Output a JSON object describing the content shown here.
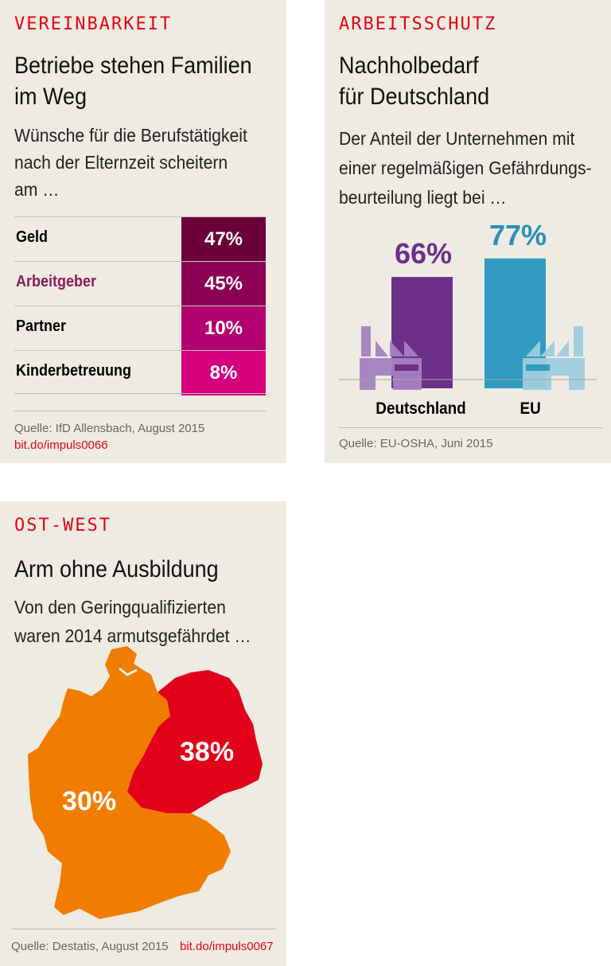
{
  "panel1": {
    "kicker": "VEREINBARKEIT",
    "title_lines": [
      "Betriebe stehen Familien",
      "im Weg"
    ],
    "sub_lines": [
      "Wünsche für die Berufstätigkeit",
      "nach der Elternzeit scheitern",
      "am …"
    ],
    "rows": [
      {
        "label": "Geld",
        "value": "47%",
        "color": "#6b0039"
      },
      {
        "label": "Arbeitgeber",
        "value": "45%",
        "color": "#8c0054",
        "label_color": "#8c1c5a"
      },
      {
        "label": "Partner",
        "value": "10%",
        "color": "#b30071"
      },
      {
        "label": "Kinderbetreuung",
        "value": "8%",
        "color": "#d6007f"
      }
    ],
    "source": "Quelle: IfD Allensbach, August 2015",
    "link": "bit.do/impuls0066"
  },
  "panel2": {
    "kicker": "ARBEITSSCHUTZ",
    "title_lines": [
      "Nachholbedarf",
      "für Deutschland"
    ],
    "sub_lines": [
      "Der Anteil der Unternehmen mit",
      "einer regelmäßigen Gefährdungs-",
      "beurteilung liegt bei …"
    ],
    "source": "Quelle: EU-OSHA, Juni 2015"
  },
  "panel3": {
    "kicker": "OST-WEST",
    "title": "Arm ohne Ausbildung",
    "sub_lines": [
      "Von den Geringqualifizierten",
      "waren 2014 armutsgefährdet …"
    ],
    "source": "Quelle: Destatis, August 2015",
    "link": "bit.do/impuls0067",
    "west": {
      "value": "30%",
      "color": "#f07d00"
    },
    "east": {
      "value": "38%",
      "color": "#e2001a"
    }
  },
  "chart_data": [
    {
      "type": "table",
      "title": "Betriebe stehen Familien im Weg",
      "categories": [
        "Geld",
        "Arbeitgeber",
        "Partner",
        "Kinderbetreuung"
      ],
      "values": [
        47,
        45,
        10,
        8
      ],
      "unit": "%"
    },
    {
      "type": "bar",
      "title": "Nachholbedarf für Deutschland",
      "categories": [
        "Deutschland",
        "EU"
      ],
      "values": [
        66,
        77
      ],
      "labels": [
        "66%",
        "77%"
      ],
      "colors": [
        "#6c2f8a",
        "#319bc2"
      ],
      "icon_colors": [
        "#a582c0",
        "#9fcde0"
      ]
    },
    {
      "type": "map",
      "title": "Arm ohne Ausbildung",
      "categories": [
        "West",
        "Ost"
      ],
      "values": [
        30,
        38
      ]
    }
  ]
}
